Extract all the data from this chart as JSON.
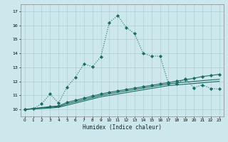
{
  "background_color": "#cde8ec",
  "grid_color": "#b0cdd2",
  "line_color": "#1a6b62",
  "xlabel": "Humidex (Indice chaleur)",
  "xlim": [
    -0.5,
    23.5
  ],
  "ylim": [
    9.5,
    17.5
  ],
  "yticks": [
    10,
    11,
    12,
    13,
    14,
    15,
    16,
    17
  ],
  "xticks": [
    0,
    1,
    2,
    3,
    4,
    5,
    6,
    7,
    8,
    9,
    10,
    11,
    12,
    13,
    14,
    15,
    16,
    17,
    18,
    19,
    20,
    21,
    22,
    23
  ],
  "series": [
    {
      "x": [
        0,
        1,
        2,
        3,
        4,
        5,
        6,
        7,
        8,
        9,
        10,
        11,
        12,
        13,
        14,
        15,
        16,
        17,
        18,
        19,
        20,
        21,
        22,
        23
      ],
      "y": [
        10.0,
        10.05,
        10.4,
        11.1,
        10.45,
        11.6,
        12.3,
        13.25,
        13.05,
        13.75,
        16.2,
        16.7,
        15.85,
        15.4,
        14.0,
        13.8,
        13.8,
        11.85,
        11.85,
        12.2,
        11.55,
        11.75,
        11.5,
        11.45
      ],
      "style": "dotted",
      "marker": "D",
      "markersize": 2.2,
      "linewidth": 0.8
    },
    {
      "x": [
        0,
        3,
        4,
        5,
        6,
        7,
        8,
        9,
        10,
        11,
        12,
        13,
        14,
        15,
        16,
        17,
        18,
        19,
        20,
        21,
        22,
        23
      ],
      "y": [
        10.0,
        10.1,
        10.15,
        10.3,
        10.45,
        10.6,
        10.75,
        10.9,
        11.0,
        11.1,
        11.2,
        11.3,
        11.4,
        11.5,
        11.6,
        11.7,
        11.75,
        11.8,
        11.85,
        11.9,
        11.95,
        12.0
      ],
      "style": "solid",
      "marker": null,
      "markersize": 0,
      "linewidth": 0.8
    },
    {
      "x": [
        0,
        3,
        4,
        5,
        6,
        7,
        8,
        9,
        10,
        11,
        12,
        13,
        14,
        15,
        16,
        17,
        18,
        19,
        20,
        21,
        22,
        23
      ],
      "y": [
        10.0,
        10.15,
        10.2,
        10.4,
        10.55,
        10.7,
        10.85,
        11.0,
        11.12,
        11.22,
        11.32,
        11.42,
        11.52,
        11.62,
        11.72,
        11.82,
        11.9,
        11.95,
        12.0,
        12.05,
        12.1,
        12.15
      ],
      "style": "solid",
      "marker": null,
      "markersize": 0,
      "linewidth": 0.8
    },
    {
      "x": [
        0,
        3,
        4,
        5,
        6,
        7,
        8,
        9,
        10,
        11,
        12,
        13,
        14,
        15,
        16,
        17,
        18,
        19,
        20,
        21,
        22,
        23
      ],
      "y": [
        10.0,
        10.2,
        10.25,
        10.5,
        10.65,
        10.8,
        10.95,
        11.1,
        11.22,
        11.32,
        11.42,
        11.52,
        11.62,
        11.72,
        11.82,
        11.92,
        12.02,
        12.12,
        12.22,
        12.35,
        12.42,
        12.5
      ],
      "style": "solid",
      "marker": "D",
      "markersize": 2.2,
      "linewidth": 0.8
    }
  ]
}
